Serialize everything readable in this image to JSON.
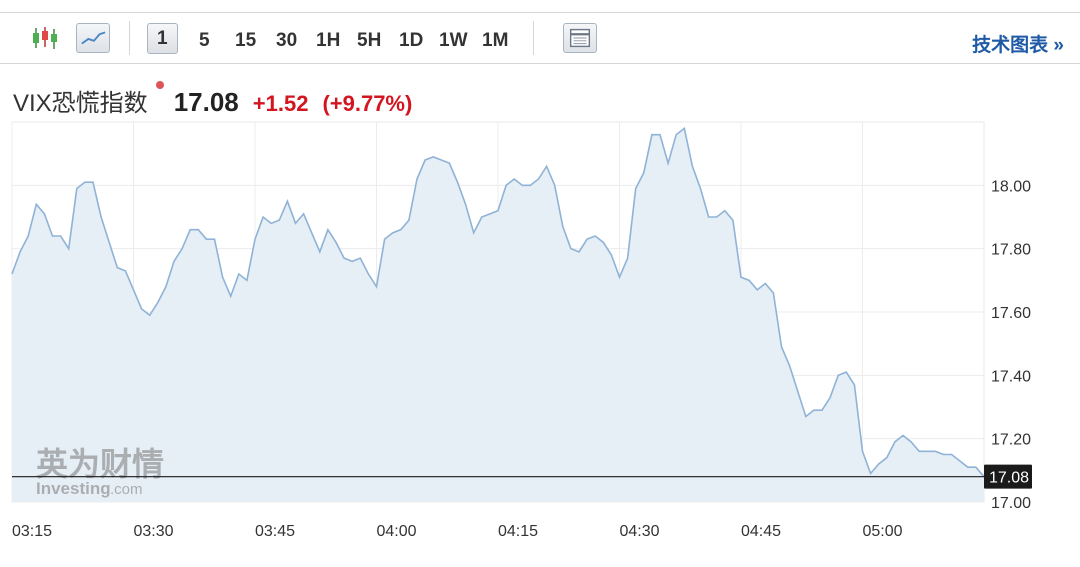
{
  "toolbar": {
    "timeframes": [
      "1",
      "5",
      "15",
      "30",
      "1H",
      "5H",
      "1D",
      "1W",
      "1M"
    ],
    "active_timeframe": "1",
    "tech_chart_link": "技术图表 »",
    "icons": [
      "candlestick-icon",
      "line-chart-icon",
      "table-icon"
    ]
  },
  "quote": {
    "name": "VIX恐慌指数",
    "price": "17.08",
    "change": "+1.52",
    "change_pct": "(+9.77%)",
    "change_color": "#d3151f"
  },
  "watermark": {
    "cn": "英为财情",
    "en": "Investing",
    "en_suffix": ".com"
  },
  "colors": {
    "line": "#8fb3d6",
    "area": "#e6eef6",
    "last_price_box": "#1a1a1a"
  },
  "chart_data": {
    "type": "area",
    "title": "",
    "xlabel": "",
    "ylabel": "",
    "ylim": [
      17.0,
      18.2
    ],
    "yticks": [
      "18.00",
      "17.80",
      "17.60",
      "17.40",
      "17.20",
      "17.00"
    ],
    "ytick_values": [
      18.0,
      17.8,
      17.6,
      17.4,
      17.2,
      17.0
    ],
    "xticks": [
      "03:15",
      "03:30",
      "03:45",
      "04:00",
      "04:15",
      "04:30",
      "04:45",
      "05:00"
    ],
    "x_start": "03:15",
    "x_end": "05:13",
    "last_value_label": "17.08",
    "last_value": 17.08,
    "grid": true,
    "series": [
      {
        "values": [
          17.72,
          17.79,
          17.84,
          17.94,
          17.91,
          17.84,
          17.84,
          17.8,
          17.99,
          18.01,
          18.01,
          17.9,
          17.82,
          17.74,
          17.73,
          17.67,
          17.61,
          17.59,
          17.63,
          17.68,
          17.76,
          17.8,
          17.86,
          17.86,
          17.83,
          17.83,
          17.71,
          17.65,
          17.72,
          17.7,
          17.83,
          17.9,
          17.88,
          17.89,
          17.95,
          17.88,
          17.91,
          17.85,
          17.79,
          17.86,
          17.82,
          17.77,
          17.76,
          17.77,
          17.72,
          17.68,
          17.83,
          17.85,
          17.86,
          17.89,
          18.02,
          18.08,
          18.09,
          18.08,
          18.07,
          18.01,
          17.94,
          17.85,
          17.9,
          17.91,
          17.92,
          18.0,
          18.02,
          18.0,
          18.0,
          18.02,
          18.06,
          18.0,
          17.87,
          17.8,
          17.79,
          17.83,
          17.84,
          17.82,
          17.78,
          17.71,
          17.77,
          17.99,
          18.04,
          18.16,
          18.16,
          18.07,
          18.16,
          18.18,
          18.06,
          17.99,
          17.9,
          17.9,
          17.92,
          17.89,
          17.71,
          17.7,
          17.67,
          17.69,
          17.66,
          17.49,
          17.43,
          17.35,
          17.27,
          17.29,
          17.29,
          17.33,
          17.4,
          17.41,
          17.37,
          17.16,
          17.09,
          17.12,
          17.14,
          17.19,
          17.21,
          17.19,
          17.16,
          17.16,
          17.16,
          17.15,
          17.15,
          17.13,
          17.11,
          17.11,
          17.08
        ]
      }
    ]
  }
}
